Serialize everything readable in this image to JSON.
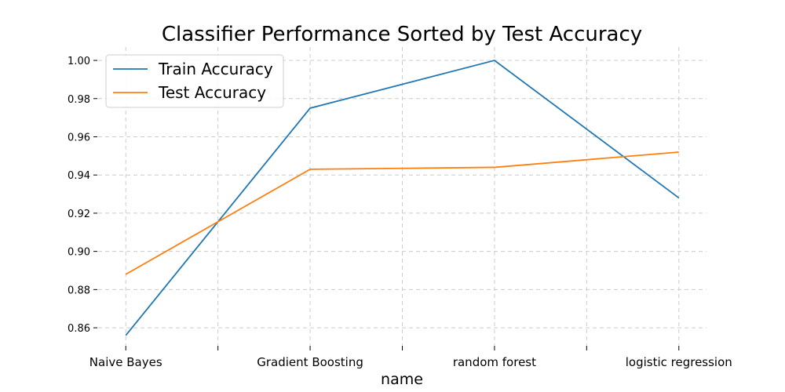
{
  "chart_data": {
    "type": "line",
    "title": "Classifier Performance Sorted by Test Accuracy",
    "xlabel": "name",
    "ylabel": "",
    "x_positions": [
      0,
      0.5,
      1,
      1.5,
      2,
      2.5,
      3
    ],
    "x_tick_labels": [
      "Naive Bayes",
      "",
      "Gradient Boosting",
      "",
      "random forest",
      "",
      "logistic regression"
    ],
    "categories": [
      "Naive Bayes",
      "Gradient Boosting",
      "random forest",
      "logistic regression"
    ],
    "category_positions": [
      0,
      1,
      2,
      3
    ],
    "xlim": [
      -0.15,
      3.15
    ],
    "ylim": [
      0.851,
      1.007
    ],
    "yticks": [
      0.86,
      0.88,
      0.9,
      0.92,
      0.94,
      0.96,
      0.98,
      1.0
    ],
    "ytick_labels": [
      "0.86",
      "0.88",
      "0.90",
      "0.92",
      "0.94",
      "0.96",
      "0.98",
      "1.00"
    ],
    "grid": true,
    "legend_position": "top-left",
    "series": [
      {
        "name": "Train Accuracy",
        "color": "#1f77b4",
        "values": [
          0.856,
          0.975,
          1.0,
          0.928
        ]
      },
      {
        "name": "Test Accuracy",
        "color": "#ff7f0e",
        "values": [
          0.888,
          0.943,
          0.944,
          0.952
        ]
      }
    ]
  }
}
